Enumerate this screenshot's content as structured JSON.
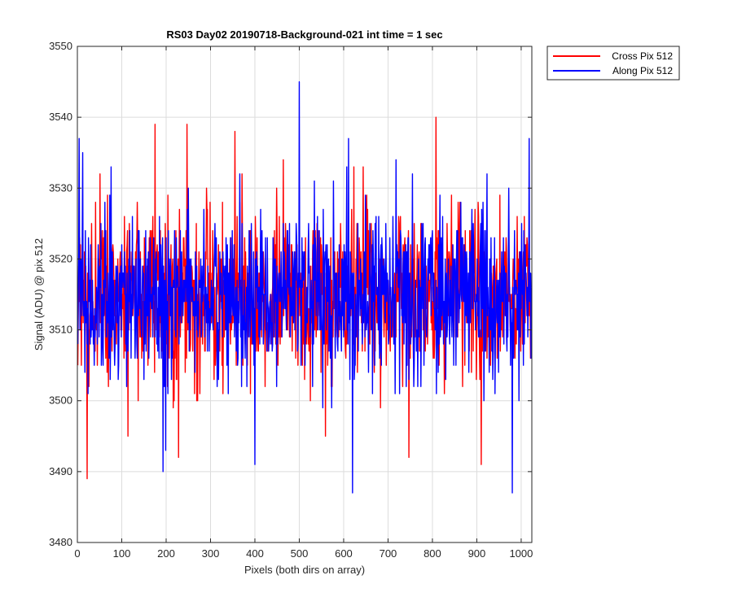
{
  "chart_data": {
    "type": "line",
    "title": "RS03 Day02 20190718-Background-021 int time = 1 sec",
    "xlabel": "Pixels (both dirs on array)",
    "ylabel": "Signal (ADU) @ pix 512",
    "xlim": [
      0,
      1024
    ],
    "ylim": [
      3480,
      3550
    ],
    "xticks": [
      0,
      100,
      200,
      300,
      400,
      500,
      600,
      700,
      800,
      900,
      1000
    ],
    "yticks": [
      3480,
      3490,
      3500,
      3510,
      3520,
      3530,
      3540,
      3550
    ],
    "grid": true,
    "legend_position": "outside-top-right",
    "series": [
      {
        "name": "Cross Pix 512",
        "color": "#ff0000",
        "x_step": 1,
        "x_start": 1,
        "sample_count": 1024,
        "noise_summary": {
          "center": 3515,
          "sigma": 7.5
        },
        "notable_points": [
          {
            "x": 22,
            "y": 3489
          },
          {
            "x": 175,
            "y": 3539
          },
          {
            "x": 228,
            "y": 3492
          },
          {
            "x": 247,
            "y": 3539
          },
          {
            "x": 355,
            "y": 3538
          },
          {
            "x": 808,
            "y": 3540
          },
          {
            "x": 910,
            "y": 3491
          }
        ]
      },
      {
        "name": "Along Pix 512",
        "color": "#0000ff",
        "x_step": 1,
        "x_start": 1,
        "sample_count": 1024,
        "noise_summary": {
          "center": 3515,
          "sigma": 7.5
        },
        "notable_points": [
          {
            "x": 12,
            "y": 3535
          },
          {
            "x": 193,
            "y": 3490
          },
          {
            "x": 400,
            "y": 3491
          },
          {
            "x": 500,
            "y": 3545
          },
          {
            "x": 620,
            "y": 3487
          },
          {
            "x": 980,
            "y": 3487
          },
          {
            "x": 1018,
            "y": 3537
          }
        ]
      }
    ]
  }
}
